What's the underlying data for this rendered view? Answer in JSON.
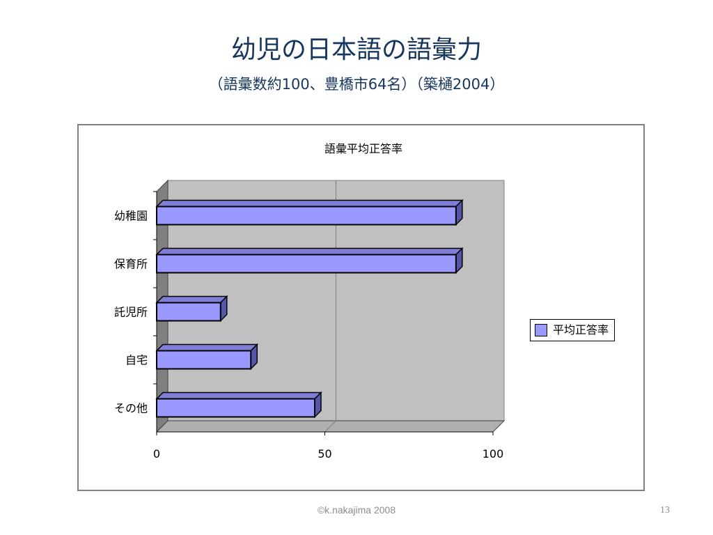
{
  "slide": {
    "title": "幼児の日本語の語彙力",
    "subtitle": "（語彙数約100、豊橋市64名）（築樋2004）",
    "footer": "©k.nakajima 2008",
    "page_number": "13"
  },
  "colors": {
    "title": "#17365d",
    "bar_fill": "#9999ff",
    "plot_bg": "#c0c0c0",
    "wall_side": "#808080"
  },
  "chart_data": {
    "type": "bar",
    "orientation": "horizontal",
    "style": "3d",
    "title": "語彙平均正答率",
    "categories": [
      "幼稚園",
      "保育所",
      "託児所",
      "自宅",
      "その他"
    ],
    "series": [
      {
        "name": "平均正答率",
        "values": [
          89,
          89,
          19,
          28,
          47
        ]
      }
    ],
    "xlim": [
      0,
      100
    ],
    "xticks": [
      0,
      50,
      100
    ],
    "grid": true,
    "legend": "right"
  }
}
